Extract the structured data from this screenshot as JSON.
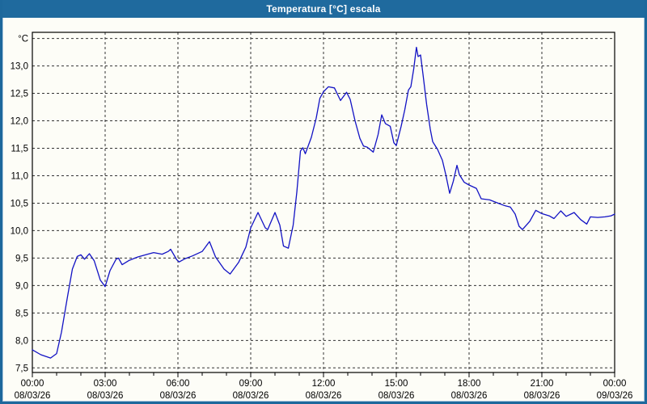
{
  "window": {
    "title": "Temperatura [°C] escala"
  },
  "chart_data": {
    "type": "line",
    "title": "Temperatura [°C] escala",
    "y_unit_label": "°C",
    "ylim": [
      7.5,
      13.5
    ],
    "ystep": 0.5,
    "grid": true,
    "decimal_separator": ",",
    "yticks": [
      {
        "v": 7.5,
        "label": "7,5"
      },
      {
        "v": 8.0,
        "label": "8,0"
      },
      {
        "v": 8.5,
        "label": "8,5"
      },
      {
        "v": 9.0,
        "label": "9,0"
      },
      {
        "v": 9.5,
        "label": "9,5"
      },
      {
        "v": 10.0,
        "label": "10,0"
      },
      {
        "v": 10.5,
        "label": "10,5"
      },
      {
        "v": 11.0,
        "label": "11,0"
      },
      {
        "v": 11.5,
        "label": "11,5"
      },
      {
        "v": 12.0,
        "label": "12,0"
      },
      {
        "v": 12.5,
        "label": "12,5"
      },
      {
        "v": 13.0,
        "label": "13,0"
      },
      {
        "v": 13.5,
        "label": "°C"
      }
    ],
    "xlim_hours": [
      0,
      24
    ],
    "x_minor_step_hours": 1,
    "xticks": [
      {
        "h": 0,
        "time": "00:00",
        "date": "08/03/26"
      },
      {
        "h": 3,
        "time": "03:00",
        "date": "08/03/26"
      },
      {
        "h": 6,
        "time": "06:00",
        "date": "08/03/26"
      },
      {
        "h": 9,
        "time": "09:00",
        "date": "08/03/26"
      },
      {
        "h": 12,
        "time": "12:00",
        "date": "08/03/26"
      },
      {
        "h": 15,
        "time": "15:00",
        "date": "08/03/26"
      },
      {
        "h": 18,
        "time": "18:00",
        "date": "08/03/26"
      },
      {
        "h": 21,
        "time": "21:00",
        "date": "08/03/26"
      },
      {
        "h": 24,
        "time": "00:00",
        "date": "09/03/26"
      }
    ],
    "colors": {
      "series": "#1212c4",
      "grid": "#333333",
      "axis": "#000000",
      "titlebar": "#1f6a9e",
      "background": "#fdfdf7"
    },
    "series": [
      {
        "name": "Temperatura",
        "points": [
          [
            0.0,
            7.83
          ],
          [
            0.35,
            7.74
          ],
          [
            0.75,
            7.68
          ],
          [
            1.0,
            7.76
          ],
          [
            1.2,
            8.15
          ],
          [
            1.45,
            8.8
          ],
          [
            1.65,
            9.3
          ],
          [
            1.85,
            9.53
          ],
          [
            2.0,
            9.56
          ],
          [
            2.15,
            9.48
          ],
          [
            2.35,
            9.58
          ],
          [
            2.55,
            9.45
          ],
          [
            2.8,
            9.1
          ],
          [
            3.0,
            8.98
          ],
          [
            3.2,
            9.27
          ],
          [
            3.45,
            9.48
          ],
          [
            3.55,
            9.5
          ],
          [
            3.7,
            9.38
          ],
          [
            4.0,
            9.46
          ],
          [
            4.35,
            9.52
          ],
          [
            4.75,
            9.57
          ],
          [
            5.0,
            9.6
          ],
          [
            5.35,
            9.57
          ],
          [
            5.6,
            9.62
          ],
          [
            5.7,
            9.66
          ],
          [
            5.95,
            9.47
          ],
          [
            6.05,
            9.43
          ],
          [
            6.3,
            9.49
          ],
          [
            6.6,
            9.54
          ],
          [
            7.0,
            9.62
          ],
          [
            7.3,
            9.8
          ],
          [
            7.55,
            9.52
          ],
          [
            7.9,
            9.3
          ],
          [
            8.15,
            9.21
          ],
          [
            8.5,
            9.42
          ],
          [
            8.8,
            9.7
          ],
          [
            9.0,
            10.05
          ],
          [
            9.3,
            10.33
          ],
          [
            9.6,
            10.05
          ],
          [
            9.7,
            10.02
          ],
          [
            10.0,
            10.33
          ],
          [
            10.2,
            10.1
          ],
          [
            10.35,
            9.72
          ],
          [
            10.55,
            9.68
          ],
          [
            10.75,
            10.1
          ],
          [
            10.9,
            10.7
          ],
          [
            11.05,
            11.45
          ],
          [
            11.15,
            11.51
          ],
          [
            11.25,
            11.4
          ],
          [
            11.5,
            11.7
          ],
          [
            11.7,
            12.05
          ],
          [
            11.85,
            12.41
          ],
          [
            12.0,
            12.53
          ],
          [
            12.2,
            12.62
          ],
          [
            12.45,
            12.6
          ],
          [
            12.7,
            12.37
          ],
          [
            12.95,
            12.52
          ],
          [
            13.1,
            12.39
          ],
          [
            13.3,
            12.0
          ],
          [
            13.5,
            11.68
          ],
          [
            13.65,
            11.54
          ],
          [
            13.8,
            11.52
          ],
          [
            14.05,
            11.43
          ],
          [
            14.25,
            11.75
          ],
          [
            14.4,
            12.11
          ],
          [
            14.55,
            11.95
          ],
          [
            14.75,
            11.9
          ],
          [
            14.9,
            11.6
          ],
          [
            15.0,
            11.55
          ],
          [
            15.2,
            11.9
          ],
          [
            15.35,
            12.2
          ],
          [
            15.5,
            12.56
          ],
          [
            15.6,
            12.62
          ],
          [
            15.72,
            12.95
          ],
          [
            15.83,
            13.34
          ],
          [
            15.9,
            13.17
          ],
          [
            16.0,
            13.2
          ],
          [
            16.1,
            12.85
          ],
          [
            16.25,
            12.3
          ],
          [
            16.4,
            11.85
          ],
          [
            16.5,
            11.62
          ],
          [
            16.7,
            11.48
          ],
          [
            16.9,
            11.28
          ],
          [
            17.05,
            11.0
          ],
          [
            17.2,
            10.68
          ],
          [
            17.35,
            10.9
          ],
          [
            17.5,
            11.19
          ],
          [
            17.6,
            11.02
          ],
          [
            17.8,
            10.88
          ],
          [
            18.0,
            10.83
          ],
          [
            18.3,
            10.77
          ],
          [
            18.5,
            10.58
          ],
          [
            18.85,
            10.56
          ],
          [
            19.2,
            10.5
          ],
          [
            19.5,
            10.45
          ],
          [
            19.7,
            10.43
          ],
          [
            19.9,
            10.3
          ],
          [
            20.06,
            10.08
          ],
          [
            20.2,
            10.02
          ],
          [
            20.5,
            10.17
          ],
          [
            20.75,
            10.37
          ],
          [
            21.0,
            10.31
          ],
          [
            21.3,
            10.27
          ],
          [
            21.5,
            10.22
          ],
          [
            21.78,
            10.36
          ],
          [
            22.0,
            10.26
          ],
          [
            22.33,
            10.33
          ],
          [
            22.6,
            10.2
          ],
          [
            22.85,
            10.12
          ],
          [
            23.0,
            10.25
          ],
          [
            23.3,
            10.24
          ],
          [
            23.6,
            10.25
          ],
          [
            23.85,
            10.27
          ],
          [
            24.0,
            10.3
          ]
        ]
      }
    ]
  }
}
